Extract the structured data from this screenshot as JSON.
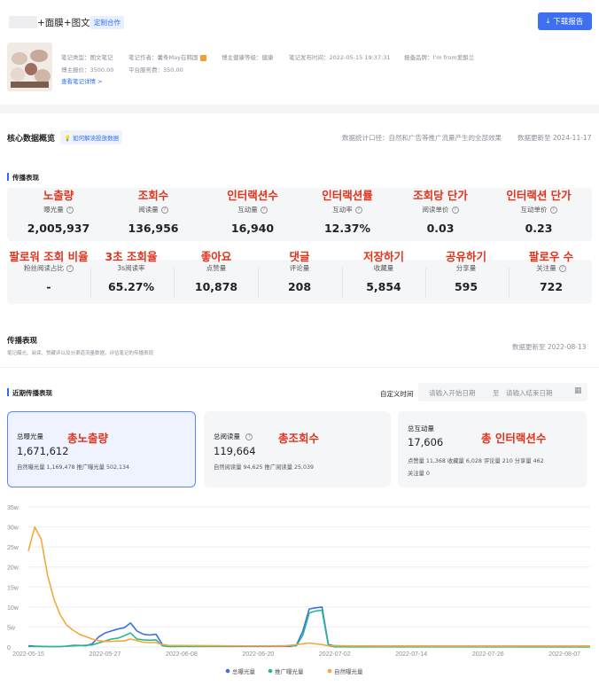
{
  "header": {
    "title": "+面膜+图文 >",
    "tag": "定制合作",
    "download_label": "下载报告"
  },
  "note_info": {
    "type": "笔记类型：图文笔记",
    "author": "笔记作者：薯条May在韩国",
    "health": "博主健康等级：健康",
    "publish": "笔记发布时间：2022-05-15 19:37:31",
    "brand": "报备品牌：I'm from爱酿兰",
    "quote": "博主报价：3500.00",
    "fee": "平台服务费：350.00",
    "detail_link": "查看笔记详情 >"
  },
  "core": {
    "title": "核心数据概览",
    "help_link": "如何解读投放数据",
    "stat_scope": "数据统计口径：自然和广告等推广流量产生的全部效果",
    "updated": "数据更新至 2024-11-17"
  },
  "spread_section_label": "传播表现",
  "metrics_row1": [
    {
      "kr": "노출량",
      "label": "曝光量",
      "value": "2,005,937"
    },
    {
      "kr": "조회수",
      "label": "阅读量",
      "value": "136,956"
    },
    {
      "kr": "인터랙션수",
      "label": "互动量",
      "value": "16,940"
    },
    {
      "kr": "인터랙션률",
      "label": "互动率",
      "value": "12.37%"
    },
    {
      "kr": "조회당 단가",
      "label": "阅读单价",
      "value": "0.03"
    },
    {
      "kr": "인터랙션 단가",
      "label": "互动单价",
      "value": "0.23"
    }
  ],
  "metrics_row2": [
    {
      "kr": "팔로워 조회 비율",
      "label": "粉丝阅读占比",
      "value": "-"
    },
    {
      "kr": "3초 조회율",
      "label": "3s阅读率",
      "value": "65.27%"
    },
    {
      "kr": "좋아요",
      "label": "点赞量",
      "value": "10,878"
    },
    {
      "kr": "댓글",
      "label": "评论量",
      "value": "208"
    },
    {
      "kr": "저장하기",
      "label": "收藏量",
      "value": "5,854"
    },
    {
      "kr": "공유하기",
      "label": "分享量",
      "value": "595"
    },
    {
      "kr": "팔로우 수",
      "label": "关注量",
      "value": "722"
    }
  ],
  "spread": {
    "title": "传播表现",
    "subtitle": "笔记曝光、阅读、赞藏评以及分渠道流量数据，评估笔记的传播表现",
    "updated": "数据更新至 2022-08-13"
  },
  "recent": {
    "title": "近期传播表现",
    "custom_time": "自定义时间",
    "start_placeholder": "请输入开始日期",
    "end_placeholder": "请输入结束日期",
    "separator": "至"
  },
  "summary_cards": [
    {
      "label": "总曝光量",
      "kr": "총노출량",
      "value": "1,671,612",
      "detail": "自然曝光量 1,169,478  推广曝光量 502,134"
    },
    {
      "label": "总阅读量",
      "kr": "총조회수",
      "value": "119,664",
      "detail": "自然阅读量 94,625  推广阅读量 25,039"
    },
    {
      "label": "总互动量",
      "kr": "총 인터랙션수",
      "value": "17,606",
      "detail": "点赞量 11,368  收藏量 6,028  评论量 210  分享量 462",
      "detail2": "关注量 0"
    }
  ],
  "chart_data": {
    "type": "line",
    "y_ticks": [
      "35w",
      "30w",
      "25w",
      "20w",
      "15w",
      "10w",
      "5w",
      "0"
    ],
    "ylim": [
      0,
      350000
    ],
    "x_ticks": [
      "2022-05-15",
      "2022-05-27",
      "2022-06-08",
      "2022-06-20",
      "2022-07-02",
      "2022-07-14",
      "2022-07-26",
      "2022-08-07"
    ],
    "x_days_range": [
      0,
      88
    ],
    "series": [
      {
        "name": "总曝光量",
        "color": "#3b6fe8",
        "points": [
          [
            0,
            3000
          ],
          [
            1,
            2000
          ],
          [
            2,
            1500
          ],
          [
            3,
            1000
          ],
          [
            4,
            1000
          ],
          [
            5,
            1000
          ],
          [
            6,
            2000
          ],
          [
            7,
            4000
          ],
          [
            8,
            4000
          ],
          [
            9,
            3000
          ],
          [
            10,
            8000
          ],
          [
            11,
            25000
          ],
          [
            12,
            35000
          ],
          [
            13,
            40000
          ],
          [
            14,
            45000
          ],
          [
            15,
            48000
          ],
          [
            16,
            60000
          ],
          [
            17,
            40000
          ],
          [
            18,
            32000
          ],
          [
            19,
            30000
          ],
          [
            20,
            32000
          ],
          [
            21,
            6000
          ],
          [
            22,
            3000
          ],
          [
            23,
            2500
          ],
          [
            24,
            2000
          ],
          [
            25,
            1500
          ],
          [
            26,
            1500
          ],
          [
            27,
            1500
          ],
          [
            28,
            1500
          ],
          [
            29,
            1500
          ],
          [
            30,
            1500
          ],
          [
            31,
            1500
          ],
          [
            32,
            1500
          ],
          [
            33,
            1500
          ],
          [
            34,
            1500
          ],
          [
            35,
            1500
          ],
          [
            36,
            1500
          ],
          [
            37,
            1500
          ],
          [
            38,
            1500
          ],
          [
            39,
            1500
          ],
          [
            40,
            1500
          ],
          [
            41,
            1500
          ],
          [
            42,
            5000
          ],
          [
            43,
            40000
          ],
          [
            44,
            95000
          ],
          [
            45,
            98000
          ],
          [
            46,
            100000
          ],
          [
            47,
            6000
          ],
          [
            48,
            3000
          ],
          [
            55,
            2000
          ],
          [
            70,
            2000
          ],
          [
            88,
            2000
          ]
        ]
      },
      {
        "name": "推广曝光量",
        "color": "#2ab88a",
        "points": [
          [
            0,
            1000
          ],
          [
            5,
            1000
          ],
          [
            10,
            5000
          ],
          [
            11,
            10000
          ],
          [
            12,
            15000
          ],
          [
            13,
            20000
          ],
          [
            14,
            22000
          ],
          [
            15,
            28000
          ],
          [
            16,
            35000
          ],
          [
            17,
            20000
          ],
          [
            18,
            18000
          ],
          [
            19,
            17000
          ],
          [
            20,
            18000
          ],
          [
            21,
            3000
          ],
          [
            22,
            1000
          ],
          [
            42,
            3000
          ],
          [
            43,
            30000
          ],
          [
            44,
            85000
          ],
          [
            45,
            90000
          ],
          [
            46,
            92000
          ],
          [
            47,
            3000
          ],
          [
            48,
            500
          ],
          [
            88,
            300
          ]
        ]
      },
      {
        "name": "自然曝光量",
        "color": "#f5a83c",
        "points": [
          [
            0,
            240000
          ],
          [
            1,
            300000
          ],
          [
            2,
            270000
          ],
          [
            3,
            180000
          ],
          [
            4,
            120000
          ],
          [
            5,
            80000
          ],
          [
            6,
            55000
          ],
          [
            7,
            42000
          ],
          [
            8,
            32000
          ],
          [
            9,
            26000
          ],
          [
            10,
            20000
          ],
          [
            11,
            16000
          ],
          [
            12,
            14000
          ],
          [
            13,
            14000
          ],
          [
            14,
            15000
          ],
          [
            15,
            15000
          ],
          [
            16,
            20000
          ],
          [
            17,
            16000
          ],
          [
            18,
            12000
          ],
          [
            19,
            11000
          ],
          [
            20,
            11000
          ],
          [
            21,
            6000
          ],
          [
            22,
            4000
          ],
          [
            30,
            3000
          ],
          [
            40,
            2500
          ],
          [
            43,
            8000
          ],
          [
            44,
            10000
          ],
          [
            45,
            8000
          ],
          [
            46,
            6000
          ],
          [
            47,
            3000
          ],
          [
            55,
            2500
          ],
          [
            70,
            2000
          ],
          [
            88,
            2000
          ]
        ]
      }
    ]
  }
}
